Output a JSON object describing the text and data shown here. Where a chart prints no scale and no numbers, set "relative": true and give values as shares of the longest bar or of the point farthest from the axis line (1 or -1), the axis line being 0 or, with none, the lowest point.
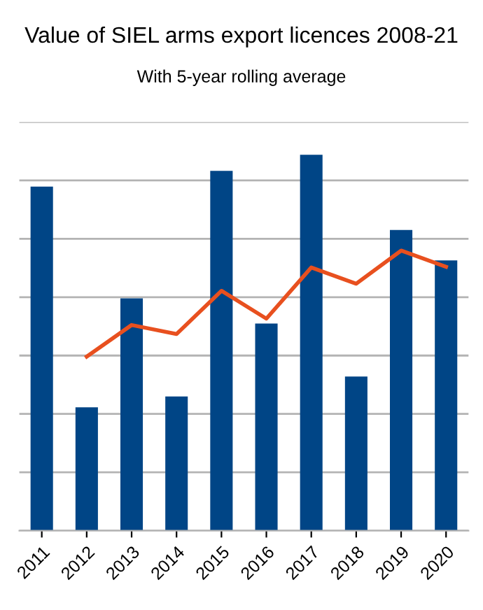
{
  "chart_data": {
    "type": "bar",
    "title": "Value of SIEL arms export licences 2008-21",
    "subtitle": "With 5-year rolling average",
    "relative": true,
    "grid": "y",
    "tick_labels": "x",
    "categories": [
      "2011",
      "2012",
      "2013",
      "2014",
      "2015",
      "2016",
      "2017",
      "2018",
      "2019",
      "2020"
    ],
    "series": [
      {
        "color": "#004586",
        "values": [
          0.915,
          0.328,
          0.618,
          0.357,
          0.957,
          0.551,
          1,
          0.41,
          0.8,
          0.719
        ]
      },
      {
        "type": "line",
        "color": "#e8501f",
        "values": [
          null,
          0.463,
          0.547,
          0.523,
          0.638,
          0.564,
          0.7,
          0.657,
          0.745,
          0.702
        ]
      }
    ]
  }
}
